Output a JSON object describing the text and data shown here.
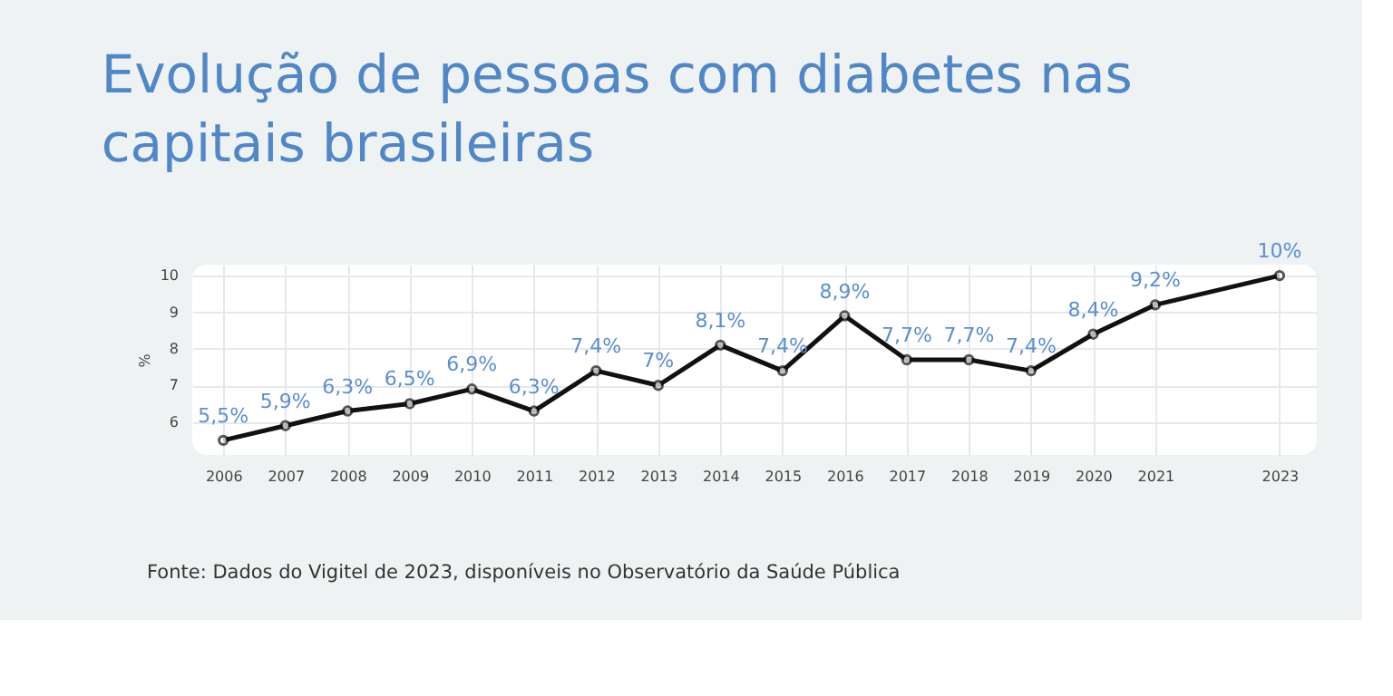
{
  "chart_data": {
    "type": "line",
    "title": "Evolução de pessoas com diabetes nas capitais brasileiras",
    "ylabel": "%",
    "x": [
      2006,
      2007,
      2008,
      2009,
      2010,
      2011,
      2012,
      2013,
      2014,
      2015,
      2016,
      2017,
      2018,
      2019,
      2020,
      2021,
      2023
    ],
    "series": [
      {
        "color": "#111111",
        "values": [
          5.5,
          5.9,
          6.3,
          6.5,
          6.9,
          6.3,
          7.4,
          7,
          8.1,
          7.4,
          8.9,
          7.7,
          7.7,
          7.4,
          8.4,
          9.2,
          10
        ],
        "value_labels": [
          "5,5%",
          "5,9%",
          "6,3%",
          "6,5%",
          "6,9%",
          "6,3%",
          "7,4%",
          "7%",
          "8,1%",
          "7,4%",
          "8,9%",
          "7,7%",
          "7,7%",
          "7,4%",
          "8,4%",
          "9,2%",
          "10%"
        ]
      }
    ],
    "xlim": [
      2005.5,
      2023.6
    ],
    "xticks": [
      2006,
      2007,
      2008,
      2009,
      2010,
      2011,
      2012,
      2013,
      2014,
      2015,
      2016,
      2017,
      2018,
      2019,
      2020,
      2021,
      2023
    ],
    "ylim": [
      5.1,
      10.3
    ],
    "yticks": [
      6,
      7,
      8,
      9,
      10
    ],
    "grid": true,
    "marker": "circle",
    "line_style": "solid",
    "legend": false,
    "annotations": [
      "Fonte: Dados do Vigitel de 2023, disponíveis no Observatório da Saúde Pública"
    ]
  }
}
